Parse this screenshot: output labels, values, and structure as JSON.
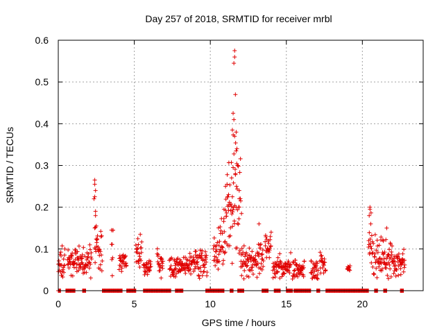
{
  "chart_data": {
    "type": "scatter",
    "title": "Day 257 of 2018, SRMTID for receiver mrbl",
    "xlabel": "GPS time / hours",
    "ylabel": "SRMTID / TECUs",
    "xlim": [
      0,
      24
    ],
    "ylim": [
      0,
      0.6
    ],
    "xticks": [
      0,
      5,
      10,
      15,
      20
    ],
    "yticks": [
      0,
      0.1,
      0.2,
      0.3,
      0.4,
      0.5,
      0.6
    ],
    "grid": true,
    "marker": "plus",
    "color": "#e00000",
    "series": [
      {
        "name": "SRMTID",
        "clusters": [
          {
            "start": 0.0,
            "end": 0.45,
            "mean": 0.062,
            "spread": 0.025
          },
          {
            "start": 0.6,
            "end": 2.2,
            "mean": 0.068,
            "spread": 0.022
          },
          {
            "start": 2.4,
            "end": 2.9,
            "mean": 0.1,
            "spread": 0.03
          },
          {
            "start": 3.5,
            "end": 3.6,
            "mean": 0.09,
            "spread": 0.04
          },
          {
            "start": 4.0,
            "end": 4.5,
            "mean": 0.068,
            "spread": 0.015
          },
          {
            "start": 5.1,
            "end": 5.5,
            "mean": 0.09,
            "spread": 0.025
          },
          {
            "start": 5.6,
            "end": 6.1,
            "mean": 0.055,
            "spread": 0.012
          },
          {
            "start": 6.5,
            "end": 6.9,
            "mean": 0.065,
            "spread": 0.02
          },
          {
            "start": 7.3,
            "end": 8.6,
            "mean": 0.055,
            "spread": 0.015
          },
          {
            "start": 8.6,
            "end": 9.8,
            "mean": 0.065,
            "spread": 0.022
          },
          {
            "start": 10.2,
            "end": 11.0,
            "mean": 0.11,
            "spread": 0.04
          },
          {
            "start": 11.0,
            "end": 11.5,
            "mean": 0.18,
            "spread": 0.08
          },
          {
            "start": 11.5,
            "end": 12.0,
            "mean": 0.2,
            "spread": 0.11
          },
          {
            "start": 12.0,
            "end": 13.5,
            "mean": 0.07,
            "spread": 0.025
          },
          {
            "start": 13.6,
            "end": 14.0,
            "mean": 0.1,
            "spread": 0.025
          },
          {
            "start": 14.1,
            "end": 15.3,
            "mean": 0.055,
            "spread": 0.018
          },
          {
            "start": 15.4,
            "end": 16.2,
            "mean": 0.05,
            "spread": 0.02
          },
          {
            "start": 16.6,
            "end": 17.1,
            "mean": 0.055,
            "spread": 0.02
          },
          {
            "start": 17.2,
            "end": 17.6,
            "mean": 0.06,
            "spread": 0.02
          },
          {
            "start": 19.0,
            "end": 19.2,
            "mean": 0.055,
            "spread": 0.005
          },
          {
            "start": 20.4,
            "end": 20.6,
            "mean": 0.13,
            "spread": 0.04
          },
          {
            "start": 20.6,
            "end": 21.3,
            "mean": 0.08,
            "spread": 0.03
          },
          {
            "start": 21.3,
            "end": 22.0,
            "mean": 0.075,
            "spread": 0.03
          },
          {
            "start": 22.0,
            "end": 22.8,
            "mean": 0.06,
            "spread": 0.02
          }
        ],
        "peaks": [
          {
            "x": 2.4,
            "y": 0.265
          },
          {
            "x": 2.4,
            "y": 0.255
          },
          {
            "x": 2.45,
            "y": 0.24
          },
          {
            "x": 2.4,
            "y": 0.225
          },
          {
            "x": 2.35,
            "y": 0.22
          },
          {
            "x": 2.45,
            "y": 0.19
          },
          {
            "x": 2.45,
            "y": 0.18
          },
          {
            "x": 2.5,
            "y": 0.155
          },
          {
            "x": 2.4,
            "y": 0.15
          },
          {
            "x": 3.5,
            "y": 0.145
          },
          {
            "x": 3.6,
            "y": 0.145
          },
          {
            "x": 11.6,
            "y": 0.575
          },
          {
            "x": 11.6,
            "y": 0.56
          },
          {
            "x": 11.55,
            "y": 0.545
          },
          {
            "x": 11.65,
            "y": 0.47
          },
          {
            "x": 11.5,
            "y": 0.425
          },
          {
            "x": 11.55,
            "y": 0.41
          },
          {
            "x": 11.45,
            "y": 0.385
          },
          {
            "x": 11.7,
            "y": 0.38
          },
          {
            "x": 11.6,
            "y": 0.37
          },
          {
            "x": 11.75,
            "y": 0.34
          },
          {
            "x": 11.7,
            "y": 0.335
          },
          {
            "x": 11.8,
            "y": 0.3
          },
          {
            "x": 11.5,
            "y": 0.295
          },
          {
            "x": 11.65,
            "y": 0.28
          },
          {
            "x": 11.4,
            "y": 0.27
          },
          {
            "x": 11.1,
            "y": 0.255
          },
          {
            "x": 11.0,
            "y": 0.25
          },
          {
            "x": 11.9,
            "y": 0.24
          },
          {
            "x": 11.2,
            "y": 0.23
          },
          {
            "x": 11.45,
            "y": 0.225
          },
          {
            "x": 11.15,
            "y": 0.225
          },
          {
            "x": 12.0,
            "y": 0.215
          },
          {
            "x": 11.3,
            "y": 0.205
          },
          {
            "x": 11.9,
            "y": 0.2
          },
          {
            "x": 10.9,
            "y": 0.195
          },
          {
            "x": 12.05,
            "y": 0.185
          },
          {
            "x": 13.2,
            "y": 0.16
          },
          {
            "x": 14.0,
            "y": 0.14
          },
          {
            "x": 20.5,
            "y": 0.2
          },
          {
            "x": 20.5,
            "y": 0.195
          },
          {
            "x": 20.45,
            "y": 0.18
          },
          {
            "x": 20.55,
            "y": 0.16
          },
          {
            "x": 21.6,
            "y": 0.15
          }
        ],
        "zero_runs": [
          {
            "start": 0.0,
            "end": 0.15
          },
          {
            "start": 0.5,
            "end": 1.1
          },
          {
            "start": 1.6,
            "end": 1.8
          },
          {
            "start": 2.9,
            "end": 4.2
          },
          {
            "start": 4.5,
            "end": 5.1
          },
          {
            "start": 5.6,
            "end": 7.4
          },
          {
            "start": 7.7,
            "end": 8.2
          },
          {
            "start": 9.7,
            "end": 10.9
          },
          {
            "start": 11.3,
            "end": 11.5
          },
          {
            "start": 11.8,
            "end": 12.2
          },
          {
            "start": 13.4,
            "end": 13.8
          },
          {
            "start": 14.2,
            "end": 14.6
          },
          {
            "start": 15.0,
            "end": 15.4
          },
          {
            "start": 15.5,
            "end": 16.6
          },
          {
            "start": 17.0,
            "end": 17.2
          },
          {
            "start": 17.6,
            "end": 20.4
          },
          {
            "start": 20.8,
            "end": 21.0
          },
          {
            "start": 21.4,
            "end": 21.6
          },
          {
            "start": 22.5,
            "end": 22.7
          }
        ]
      }
    ]
  }
}
